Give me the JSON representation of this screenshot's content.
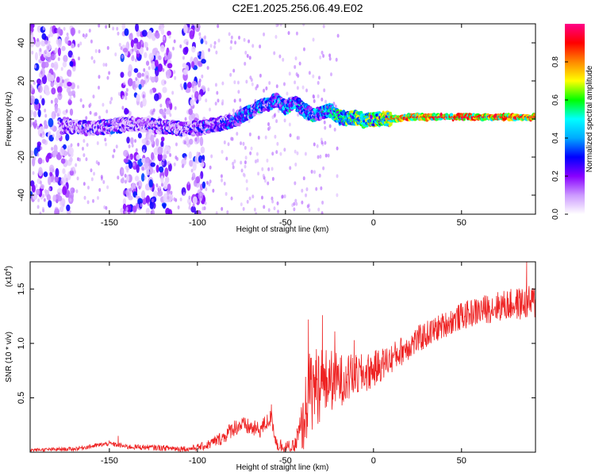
{
  "figure_title": "C2E1.2025.256.06.49.E02",
  "chart_data": [
    {
      "type": "heatmap",
      "title": "C2E1.2025.256.06.49.E02",
      "xlabel": "Height of straight line (km)",
      "ylabel": "Frequency (Hz)",
      "xlim": [
        -195,
        92
      ],
      "ylim": [
        -50,
        50
      ],
      "xticks": [
        -150,
        -100,
        -50,
        0,
        50
      ],
      "xtick_labels": [
        "-150",
        "-100",
        "-50",
        "0",
        "50"
      ],
      "yticks": [
        -40,
        -20,
        0,
        20,
        40
      ],
      "ytick_labels": [
        "-40",
        "-20",
        "0",
        "20",
        "40"
      ],
      "colorbar": {
        "label": "Normalized spectral amplitude",
        "range": [
          0,
          1
        ],
        "ticks": [
          0.0,
          0.2,
          0.4,
          0.6,
          0.8
        ],
        "tick_labels": [
          "0.0",
          "0.2",
          "0.4",
          "0.6",
          "0.8"
        ],
        "colors": [
          "#ffffff",
          "#cc99ff",
          "#8800ff",
          "#0000ff",
          "#00aaff",
          "#00ffff",
          "#00ff00",
          "#ffff00",
          "#ff8800",
          "#ff0000",
          "#ff0088"
        ]
      },
      "ridge": {
        "description": "main spectral ridge frequency (Hz) vs height (km)",
        "x": [
          -178,
          -170,
          -160,
          -150,
          -140,
          -130,
          -120,
          -110,
          -100,
          -90,
          -80,
          -70,
          -60,
          -55,
          -50,
          -45,
          -40,
          -35,
          -30,
          -25,
          -20,
          -15,
          -10,
          -5,
          0,
          10,
          20,
          40,
          60,
          90
        ],
        "y": [
          -4,
          -4,
          -5,
          -4,
          -3,
          -3,
          -4,
          -5,
          -5,
          -3,
          -1,
          4,
          8,
          10,
          6,
          9,
          5,
          2,
          3,
          5,
          1,
          0,
          1,
          -1,
          0,
          0,
          1,
          1,
          1,
          1
        ],
        "amplitude": [
          0.25,
          0.3,
          0.35,
          0.35,
          0.3,
          0.3,
          0.35,
          0.3,
          0.35,
          0.4,
          0.45,
          0.5,
          0.5,
          0.45,
          0.5,
          0.55,
          0.5,
          0.55,
          0.6,
          0.65,
          0.7,
          0.7,
          0.75,
          0.75,
          0.8,
          0.85,
          0.9,
          0.9,
          0.92,
          0.92
        ]
      },
      "noise_bands_km": [
        [
          -195,
          -170
        ],
        [
          -143,
          -115
        ],
        [
          -108,
          -96
        ]
      ]
    },
    {
      "type": "line",
      "title": "",
      "xlabel": "Height of straight line (km)",
      "ylabel": "SNR (10 * v/v)",
      "multiplier_label": "(x10",
      "multiplier_exp": "4",
      "multiplier_close": ")",
      "xlim": [
        -195,
        92
      ],
      "ylim": [
        0,
        1.75
      ],
      "xticks": [
        -150,
        -100,
        -50,
        0,
        50
      ],
      "xtick_labels": [
        "-150",
        "-100",
        "-50",
        "0",
        "50"
      ],
      "yticks": [
        0.5,
        1.0,
        1.5
      ],
      "ytick_labels": [
        "0.5",
        "1.0",
        "1.5"
      ],
      "color": "#ee2222",
      "trend": {
        "x": [
          -195,
          -170,
          -150,
          -140,
          -120,
          -105,
          -95,
          -85,
          -80,
          -75,
          -65,
          -58,
          -55,
          -50,
          -45,
          -40,
          -37,
          -34,
          -31,
          -28,
          -24,
          -20,
          -15,
          -10,
          -5,
          0,
          10,
          20,
          30,
          40,
          50,
          60,
          70,
          80,
          92
        ],
        "y": [
          0.02,
          0.03,
          0.08,
          0.05,
          0.04,
          0.03,
          0.06,
          0.14,
          0.22,
          0.25,
          0.2,
          0.32,
          0.08,
          0.04,
          0.05,
          0.25,
          0.55,
          0.6,
          0.62,
          0.64,
          0.66,
          0.66,
          0.68,
          0.7,
          0.72,
          0.76,
          0.86,
          0.98,
          1.08,
          1.17,
          1.25,
          1.3,
          1.34,
          1.36,
          1.38
        ]
      },
      "noise_amp": {
        "x": [
          -195,
          -100,
          -80,
          -58,
          -45,
          -37,
          -30,
          -20,
          -10,
          10,
          40,
          70,
          92
        ],
        "y": [
          0.015,
          0.03,
          0.08,
          0.08,
          0.06,
          0.4,
          0.35,
          0.25,
          0.2,
          0.14,
          0.12,
          0.14,
          0.16
        ]
      },
      "spikes": [
        {
          "x": -145,
          "y": 0.15
        },
        {
          "x": -58,
          "y": 0.44
        },
        {
          "x": -37,
          "y": 1.22
        },
        {
          "x": -29,
          "y": 1.26
        },
        {
          "x": -22,
          "y": 1.11
        },
        {
          "x": -11,
          "y": 1.03
        },
        {
          "x": 87,
          "y": 1.75
        }
      ]
    }
  ]
}
